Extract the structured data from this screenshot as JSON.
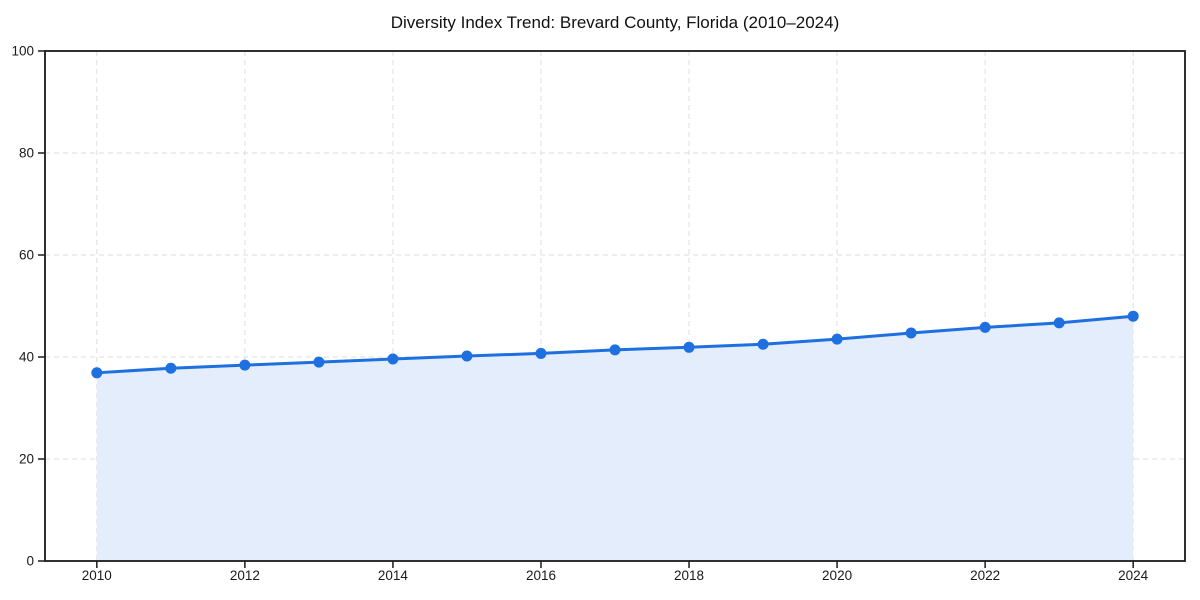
{
  "chart_data": {
    "type": "area",
    "title": "Diversity Index Trend: Brevard County, Florida (2010–2024)",
    "series_name": "Diversity Index",
    "x": [
      2010,
      2011,
      2012,
      2013,
      2014,
      2015,
      2016,
      2017,
      2018,
      2019,
      2020,
      2021,
      2022,
      2023,
      2024
    ],
    "values": [
      36.9,
      37.8,
      38.4,
      39.0,
      39.6,
      40.2,
      40.7,
      41.4,
      41.9,
      42.5,
      43.5,
      44.7,
      45.8,
      46.7,
      48.0
    ],
    "xlabel": "",
    "ylabel": "",
    "xlim": [
      2009.3,
      2024.7
    ],
    "ylim": [
      0,
      100
    ],
    "x_ticks": [
      2010,
      2012,
      2014,
      2016,
      2018,
      2020,
      2022,
      2024
    ],
    "y_ticks": [
      0,
      20,
      40,
      60,
      80,
      100
    ],
    "grid": "dashed",
    "legend": "none",
    "colors": {
      "line": "#1e6fe0",
      "marker": "#1e6fe0",
      "area_fill": "#e4edfb",
      "gridline": "#dedede",
      "spine": "#1a1a1a",
      "tick_text": "#1a1a1a",
      "background": "#ffffff"
    }
  }
}
